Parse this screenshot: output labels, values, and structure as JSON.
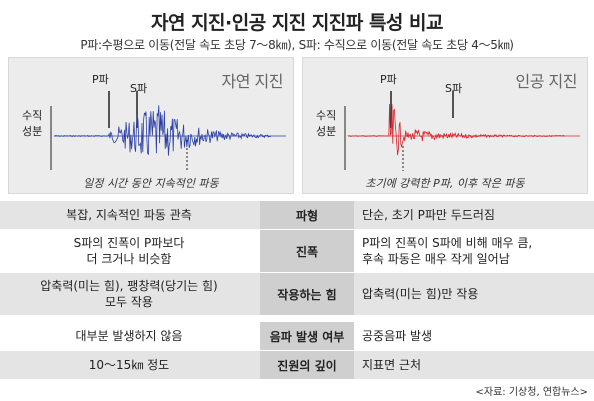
{
  "title": "자연 지진·인공 지진 지진파 특성 비교",
  "subtitle": "P파:수평으로 이동(전달 속도 초당 7～8㎞), S파: 수직으로 이동(전달 속도 초당 4～5㎞)",
  "panels": {
    "natural": {
      "title": "자연 지진",
      "axis_label_line1": "수직",
      "axis_label_line2": "성분",
      "p_label": "P파",
      "s_label": "S파",
      "caption": "일정 시간 동안 지속적인 파동",
      "color": "#2b3fa6"
    },
    "artificial": {
      "title": "인공 지진",
      "axis_label_line1": "수직",
      "axis_label_line2": "성분",
      "p_label": "P파",
      "s_label": "S파",
      "caption": "초기에 강력한 P파, 이후 작은 파동",
      "color": "#d8232a"
    }
  },
  "table": {
    "rows": [
      {
        "left": [
          "복잡, 지속적인 파동 관측"
        ],
        "mid": "파형",
        "right": [
          "단순, 초기 P파만 두드러짐"
        ]
      },
      {
        "left": [
          "S파의 진폭이 P파보다",
          "더 크거나 비슷함"
        ],
        "mid": "진폭",
        "right": [
          "P파의 진폭이 S파에 비해 매우 큼,",
          "후속 파동은 매우 작게 일어남"
        ]
      },
      {
        "left": [
          "압축력(미는 힘), 팽창력(당기는 힘)",
          "모두 작용"
        ],
        "mid": "작용하는 힘",
        "right": [
          "압축력(미는 힘)만 작용"
        ]
      },
      {
        "left": [
          "대부분 발생하지 않음"
        ],
        "mid": "음파 발생 여부",
        "right": [
          "공중음파 발생"
        ]
      },
      {
        "left": [
          "10～15㎞ 정도"
        ],
        "mid": "진원의 깊이",
        "right": [
          "지표면 근처"
        ]
      }
    ]
  },
  "source": "<자료: 기상청, 연합뉴스>"
}
